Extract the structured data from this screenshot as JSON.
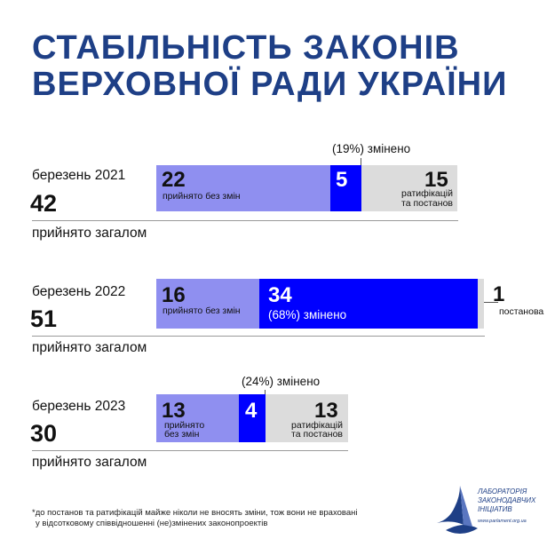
{
  "title": {
    "line1": "СТАБІЛЬНІСТЬ ЗАКОНІВ",
    "line2": "ВЕРХОВНОЇ РАДИ УКРАЇНИ"
  },
  "colors": {
    "title": "#1e3f86",
    "unchanged": "#8f8ff0",
    "changed": "#0000ff",
    "ratifications": "#dcdcdc"
  },
  "chart_data": {
    "type": "bar",
    "stacked": true,
    "orientation": "horizontal",
    "categories": [
      "березень 2021",
      "березень 2022",
      "березень 2023"
    ],
    "totals": [
      42,
      51,
      30
    ],
    "total_label": "прийнято загалом",
    "series": [
      {
        "name": "прийнято без змін",
        "values": [
          22,
          16,
          13
        ]
      },
      {
        "name": "змінено",
        "values": [
          5,
          34,
          4
        ],
        "percent_labels": [
          "(19%) змінено",
          "(68%) змінено",
          "(24%) змінено"
        ]
      },
      {
        "name": "ратифікацій та постанов",
        "values": [
          15,
          1,
          13
        ]
      }
    ]
  },
  "groups": [
    {
      "date": "березень 2021",
      "total": "42",
      "total_label": "прийнято загалом",
      "unchanged_value": "22",
      "unchanged_label": "прийнято без змін",
      "changed_value": "5",
      "changed_note": "(19%) змінено",
      "other_value": "15",
      "other_label_1": "ратифікацій",
      "other_label_2": "та постанов"
    },
    {
      "date": "березень 2022",
      "total": "51",
      "total_label": "прийнято загалом",
      "unchanged_value": "16",
      "unchanged_label": "прийнято без змін",
      "changed_value": "34",
      "changed_note": "(68%) змінено",
      "other_value": "1",
      "other_label_1": "постанова"
    },
    {
      "date": "березень 2023",
      "total": "30",
      "total_label": "прийнято загалом",
      "unchanged_value": "13",
      "unchanged_label_1": "прийнято",
      "unchanged_label_2": "без змін",
      "changed_value": "4",
      "changed_note": "(24%) змінено",
      "other_value": "13",
      "other_label_1": "ратифікацій",
      "other_label_2": "та постанов"
    }
  ],
  "footnote": {
    "line1": "*до постанов та ратифікацій майже ніколи не вносять зміни, тож вони не враховані",
    "line2": "у відсотковому співвідношенні (не)змінених законопроектів"
  },
  "logo": {
    "line1": "ЛАБОРАТОРІЯ",
    "line2": "ЗАКОНОДАВЧИХ",
    "line3": "ІНІЦІАТИВ",
    "url": "www.parlament.org.ua"
  }
}
